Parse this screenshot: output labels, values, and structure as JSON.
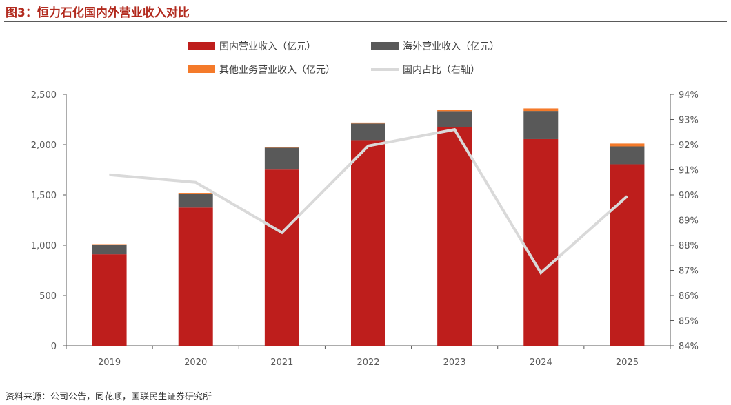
{
  "figure": {
    "title": "图3：恒力石化国内外营业收入对比",
    "source": "资料来源：公司公告，同花顺，国联民生证券研究所"
  },
  "chart_data": {
    "type": "bar",
    "stacked": true,
    "categories": [
      "2019",
      "2020",
      "2021",
      "2022",
      "2023",
      "2024",
      "2025"
    ],
    "series": [
      {
        "name": "国内营业收入（亿元）",
        "type": "bar",
        "axis": "left",
        "color": "#be1e1c",
        "values": [
          910,
          1375,
          1752,
          2045,
          2175,
          2055,
          1805
        ]
      },
      {
        "name": "海外营业收入（亿元）",
        "type": "bar",
        "axis": "left",
        "color": "#595959",
        "values": [
          92,
          135,
          218,
          165,
          158,
          280,
          178
        ]
      },
      {
        "name": "其他业务营业收入（亿元）",
        "type": "bar",
        "axis": "left",
        "color": "#f47a2a",
        "values": [
          8,
          10,
          8,
          10,
          14,
          25,
          28
        ]
      },
      {
        "name": "国内占比（右轴）",
        "type": "line",
        "axis": "right",
        "color": "#d9d9d9",
        "values": [
          90.8,
          90.5,
          88.5,
          91.95,
          92.6,
          86.9,
          89.95
        ]
      }
    ],
    "y_left": {
      "min": 0,
      "max": 2500,
      "ticks": [
        "0",
        "500",
        "1,000",
        "1,500",
        "2,000",
        "2,500"
      ]
    },
    "y_right": {
      "min": 84,
      "max": 94,
      "ticks": [
        "84%",
        "85%",
        "86%",
        "87%",
        "88%",
        "89%",
        "90%",
        "91%",
        "92%",
        "93%",
        "94%"
      ]
    },
    "legend_position": "top",
    "grid": false
  }
}
